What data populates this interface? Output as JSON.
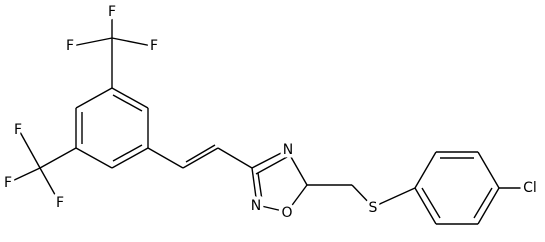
{
  "atoms": [
    {
      "label": "F"
    },
    {
      "label": "F"
    },
    {
      "label": "F"
    },
    {
      "label": "F"
    },
    {
      "label": "F"
    },
    {
      "label": "F"
    },
    {
      "label": "N"
    },
    {
      "label": "O"
    },
    {
      "label": "N"
    },
    {
      "label": "S"
    },
    {
      "label": "Cl"
    }
  ]
}
